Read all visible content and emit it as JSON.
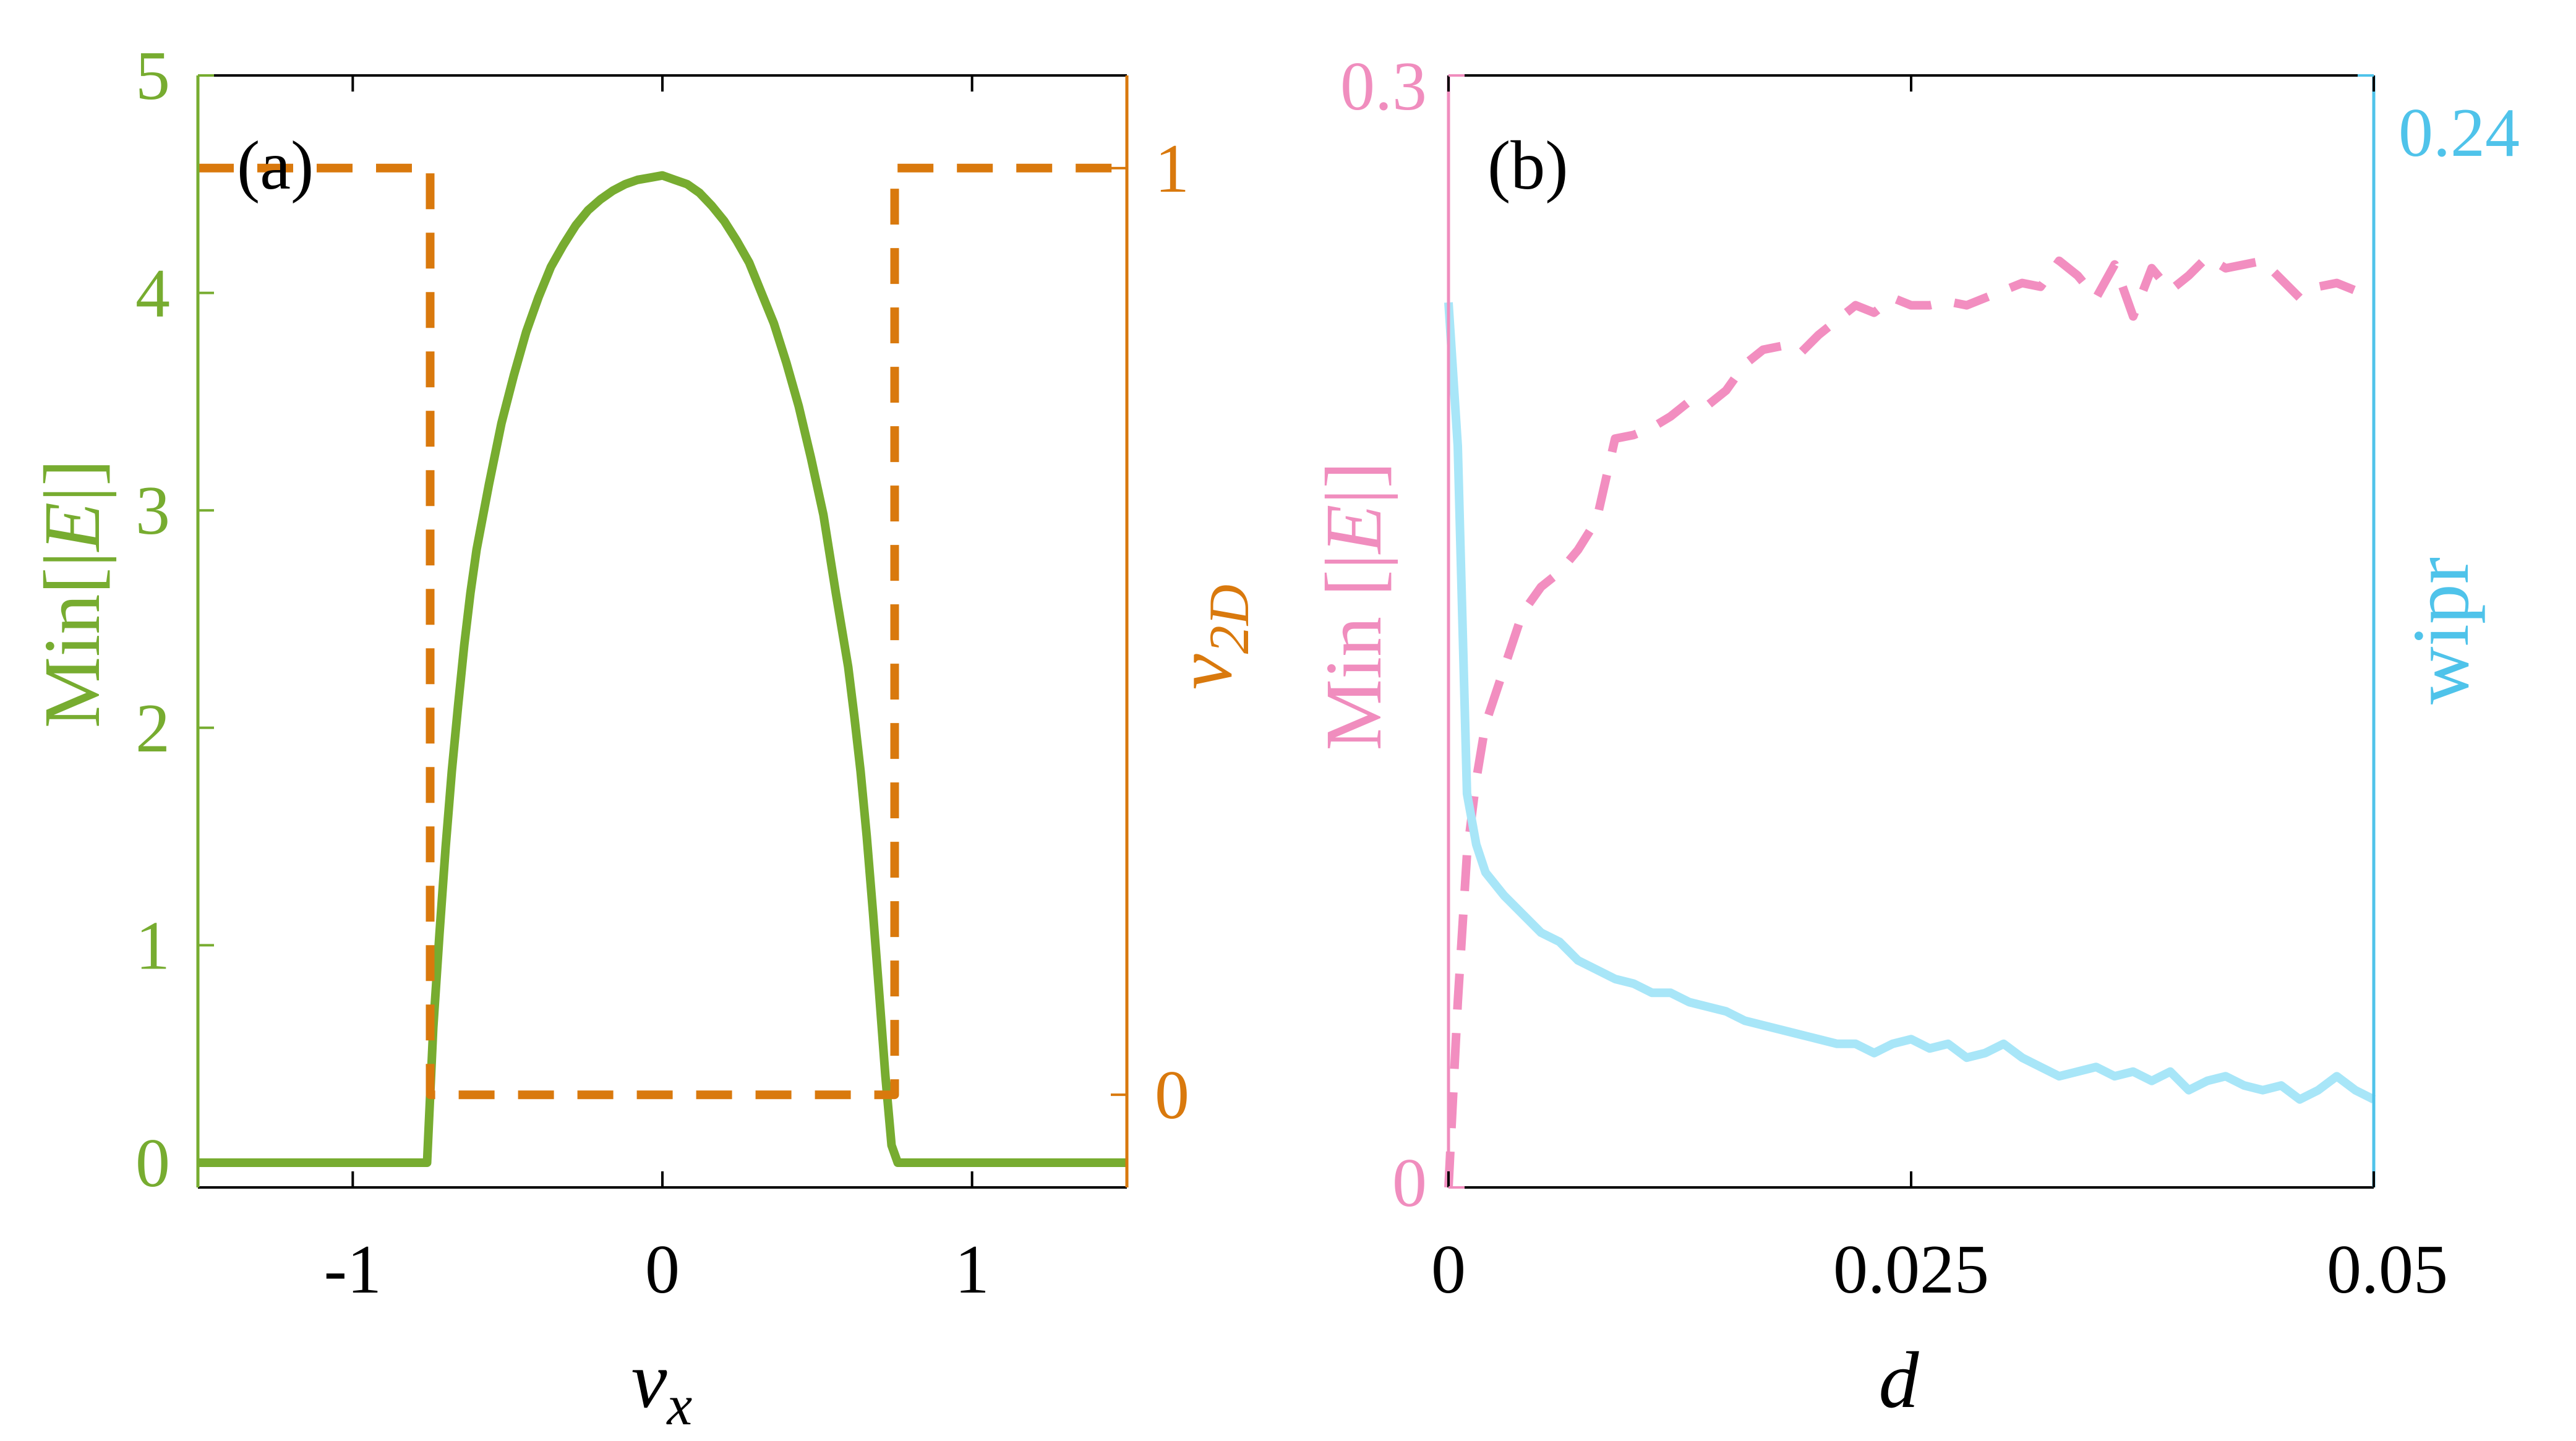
{
  "colors": {
    "green": "#77AC30",
    "orange": "#D9790D",
    "pink": "#F08DBE",
    "pink_line": "#F28EC0",
    "blue": "#4FC3EA",
    "blue_line": "#A8E6F8",
    "black": "#000000"
  },
  "chart_data": [
    {
      "type": "line",
      "panel_label": "(a)",
      "xlabel": "v_x",
      "xlabel_main": "v",
      "xlabel_sub": "x",
      "ylabel_left": "Min[|E|]",
      "ylabel_left_main": "Min[|",
      "ylabel_left_var": "E",
      "ylabel_left_end": "|]",
      "ylabel_right": "ν_2D",
      "ylabel_right_main": "ν",
      "ylabel_right_sub": "2D",
      "xlim": [
        -1.5,
        1.5
      ],
      "ylim_left": [
        0,
        5
      ],
      "ylim_right": [
        -0.1,
        1.1
      ],
      "xticks": [
        -1,
        0,
        1
      ],
      "xtick_labels": [
        "-1",
        "0",
        "1"
      ],
      "yticks_left": [
        0,
        1,
        2,
        3,
        4,
        5
      ],
      "ytick_labels_left": [
        "0",
        "1",
        "2",
        "3",
        "4",
        "5"
      ],
      "yticks_right": [
        0,
        1
      ],
      "ytick_labels_right": [
        "0",
        "1"
      ],
      "series": [
        {
          "name": "Min[|E|]",
          "axis": "left",
          "style": "solid",
          "color_key": "green",
          "x": [
            -1.5,
            -0.76,
            -0.74,
            -0.72,
            -0.7,
            -0.68,
            -0.66,
            -0.64,
            -0.62,
            -0.6,
            -0.56,
            -0.52,
            -0.48,
            -0.44,
            -0.4,
            -0.36,
            -0.32,
            -0.28,
            -0.24,
            -0.2,
            -0.16,
            -0.12,
            -0.08,
            -0.04,
            0.0,
            0.04,
            0.08,
            0.12,
            0.16,
            0.2,
            0.24,
            0.28,
            0.32,
            0.36,
            0.4,
            0.44,
            0.48,
            0.52,
            0.56,
            0.6,
            0.62,
            0.64,
            0.66,
            0.68,
            0.7,
            0.72,
            0.74,
            0.76,
            1.5
          ],
          "y": [
            0,
            0,
            0.62,
            1.05,
            1.45,
            1.8,
            2.1,
            2.38,
            2.62,
            2.82,
            3.12,
            3.4,
            3.62,
            3.82,
            3.98,
            4.12,
            4.22,
            4.31,
            4.38,
            4.43,
            4.47,
            4.5,
            4.52,
            4.53,
            4.54,
            4.52,
            4.5,
            4.46,
            4.4,
            4.33,
            4.24,
            4.14,
            4.0,
            3.86,
            3.68,
            3.48,
            3.24,
            2.98,
            2.62,
            2.28,
            2.05,
            1.8,
            1.5,
            1.15,
            0.78,
            0.4,
            0.08,
            0,
            0
          ]
        },
        {
          "name": "ν_2D",
          "axis": "right",
          "style": "dashed",
          "color_key": "orange",
          "x": [
            -1.5,
            -0.75,
            -0.75,
            0.75,
            0.75,
            1.5
          ],
          "y": [
            1,
            1,
            0,
            0,
            1,
            1
          ]
        }
      ]
    },
    {
      "type": "line",
      "panel_label": "(b)",
      "xlabel": "d",
      "ylabel_left": "Min [|E|]",
      "ylabel_left_main": "Min [|",
      "ylabel_left_var": "E",
      "ylabel_left_end": "|]",
      "ylabel_right": "wipr",
      "xlim": [
        0,
        0.05
      ],
      "ylim_left": [
        0,
        0.3
      ],
      "ylim_right": [
        0,
        0.24
      ],
      "xticks": [
        0,
        0.025,
        0.05
      ],
      "xtick_labels": [
        "0",
        "0.025",
        "0.05"
      ],
      "yticks_left": [
        0,
        0.3
      ],
      "ytick_labels_left": [
        "0",
        "0.3"
      ],
      "yticks_right": [
        0.24
      ],
      "ytick_labels_right": [
        "0.24"
      ],
      "series": [
        {
          "name": "Min [|E|]",
          "axis": "left",
          "style": "dashed",
          "color_key": "pink_line",
          "x": [
            0.0,
            0.0005,
            0.001,
            0.0015,
            0.002,
            0.003,
            0.004,
            0.005,
            0.006,
            0.007,
            0.008,
            0.009,
            0.01,
            0.011,
            0.012,
            0.013,
            0.014,
            0.015,
            0.016,
            0.017,
            0.018,
            0.019,
            0.02,
            0.021,
            0.022,
            0.023,
            0.024,
            0.025,
            0.026,
            0.027,
            0.028,
            0.029,
            0.03,
            0.031,
            0.032,
            0.033,
            0.034,
            0.035,
            0.036,
            0.037,
            0.038,
            0.039,
            0.04,
            0.041,
            0.042,
            0.043,
            0.044,
            0.045,
            0.046,
            0.047,
            0.048,
            0.049,
            0.05
          ],
          "y": [
            0.0,
            0.05,
            0.09,
            0.11,
            0.125,
            0.14,
            0.155,
            0.162,
            0.166,
            0.172,
            0.18,
            0.202,
            0.203,
            0.205,
            0.208,
            0.212,
            0.211,
            0.215,
            0.222,
            0.226,
            0.227,
            0.225,
            0.23,
            0.234,
            0.238,
            0.236,
            0.24,
            0.238,
            0.238,
            0.239,
            0.238,
            0.24,
            0.242,
            0.244,
            0.243,
            0.25,
            0.246,
            0.24,
            0.249,
            0.235,
            0.248,
            0.242,
            0.246,
            0.251,
            0.248,
            0.249,
            0.25,
            0.245,
            0.24,
            0.243,
            0.244,
            0.242,
            0.241
          ]
        },
        {
          "name": "wipr",
          "axis": "right",
          "style": "solid",
          "color_key": "blue_line",
          "x": [
            0.0,
            0.0005,
            0.001,
            0.0015,
            0.002,
            0.003,
            0.004,
            0.005,
            0.006,
            0.007,
            0.008,
            0.009,
            0.01,
            0.011,
            0.012,
            0.013,
            0.014,
            0.015,
            0.016,
            0.017,
            0.018,
            0.019,
            0.02,
            0.021,
            0.022,
            0.023,
            0.024,
            0.025,
            0.026,
            0.027,
            0.028,
            0.029,
            0.03,
            0.031,
            0.032,
            0.033,
            0.034,
            0.035,
            0.036,
            0.037,
            0.038,
            0.039,
            0.04,
            0.041,
            0.042,
            0.043,
            0.044,
            0.045,
            0.046,
            0.047,
            0.048,
            0.049,
            0.05
          ],
          "y": [
            0.191,
            0.16,
            0.085,
            0.074,
            0.068,
            0.063,
            0.059,
            0.055,
            0.053,
            0.049,
            0.047,
            0.045,
            0.044,
            0.042,
            0.042,
            0.04,
            0.039,
            0.038,
            0.036,
            0.035,
            0.034,
            0.033,
            0.032,
            0.031,
            0.031,
            0.029,
            0.031,
            0.032,
            0.03,
            0.031,
            0.028,
            0.029,
            0.031,
            0.028,
            0.026,
            0.024,
            0.025,
            0.026,
            0.024,
            0.025,
            0.023,
            0.025,
            0.021,
            0.023,
            0.024,
            0.022,
            0.021,
            0.022,
            0.019,
            0.021,
            0.024,
            0.021,
            0.019
          ]
        }
      ]
    }
  ]
}
